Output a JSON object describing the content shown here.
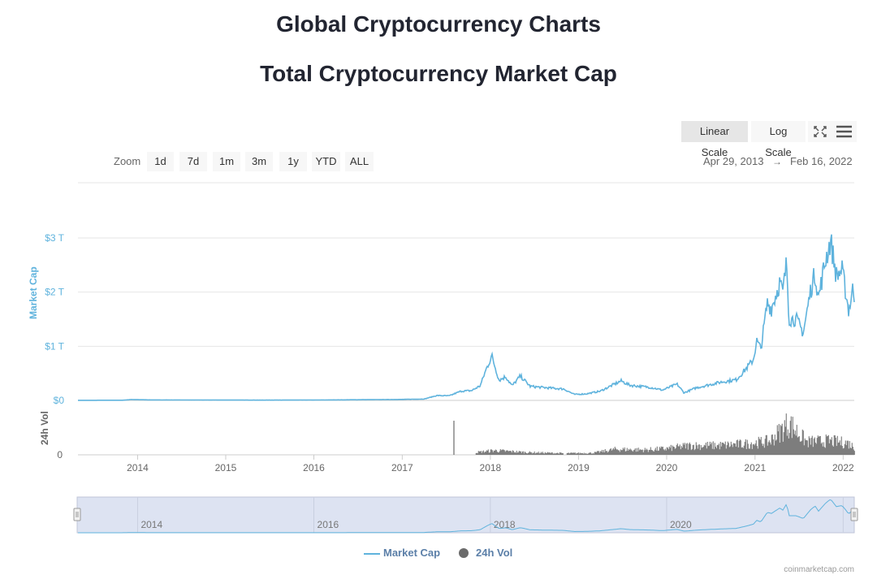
{
  "page": {
    "title": "Global Cryptocurrency Charts"
  },
  "toolbar": {
    "linear_label": "Linear Scale",
    "log_label": "Log Scale",
    "zoom_label": "Zoom",
    "zoom_buttons": [
      "1d",
      "7d",
      "1m",
      "3m",
      "1y",
      "YTD",
      "ALL"
    ],
    "date_from": "Apr 29, 2013",
    "arrow": "→",
    "date_to": "Feb 16, 2022"
  },
  "legend": {
    "market_cap": "Market Cap",
    "vol": "24h Vol"
  },
  "credits": "coinmarketcap.com",
  "colors": {
    "market_cap": "#5fb3dd",
    "volume": "#6b6b6b",
    "navigator_fill": "#dde3f2",
    "axis_text": "#666666"
  },
  "chart_data": {
    "type": "line",
    "title": "Total Cryptocurrency Market Cap",
    "x_range": [
      "2013-04-29",
      "2022-02-16"
    ],
    "x_ticks": [
      "2014",
      "2015",
      "2016",
      "2017",
      "2018",
      "2019",
      "2020",
      "2021",
      "2022"
    ],
    "y_axis": {
      "label": "Market Cap",
      "ticks": [
        "$0",
        "$1 T",
        "$2 T",
        "$3 T"
      ],
      "range_trillion": [
        0,
        3
      ]
    },
    "volume_axis": {
      "label": "24h Vol",
      "ticks": [
        "0"
      ]
    },
    "navigator_ticks": [
      "2014",
      "2016",
      "2018",
      "2020"
    ],
    "grid": true,
    "legend_position": "bottom",
    "series": [
      {
        "name": "Market Cap",
        "unit": "trillion USD",
        "points": [
          [
            "2013-04-29",
            0.0015
          ],
          [
            "2013-11-01",
            0.003
          ],
          [
            "2013-12-05",
            0.015
          ],
          [
            "2014-03-01",
            0.009
          ],
          [
            "2014-09-01",
            0.007
          ],
          [
            "2015-06-01",
            0.005
          ],
          [
            "2016-01-01",
            0.007
          ],
          [
            "2016-07-01",
            0.012
          ],
          [
            "2017-01-01",
            0.018
          ],
          [
            "2017-04-01",
            0.025
          ],
          [
            "2017-05-25",
            0.09
          ],
          [
            "2017-07-15",
            0.085
          ],
          [
            "2017-09-01",
            0.17
          ],
          [
            "2017-10-15",
            0.18
          ],
          [
            "2017-11-20",
            0.27
          ],
          [
            "2017-12-15",
            0.58
          ],
          [
            "2018-01-07",
            0.82
          ],
          [
            "2018-02-06",
            0.37
          ],
          [
            "2018-03-05",
            0.44
          ],
          [
            "2018-04-01",
            0.27
          ],
          [
            "2018-05-05",
            0.45
          ],
          [
            "2018-06-15",
            0.26
          ],
          [
            "2018-08-01",
            0.24
          ],
          [
            "2018-11-01",
            0.21
          ],
          [
            "2018-12-15",
            0.11
          ],
          [
            "2019-02-01",
            0.12
          ],
          [
            "2019-04-01",
            0.17
          ],
          [
            "2019-06-26",
            0.36
          ],
          [
            "2019-08-01",
            0.28
          ],
          [
            "2019-10-26",
            0.24
          ],
          [
            "2019-12-15",
            0.19
          ],
          [
            "2020-02-13",
            0.3
          ],
          [
            "2020-03-13",
            0.14
          ],
          [
            "2020-05-01",
            0.23
          ],
          [
            "2020-08-15",
            0.34
          ],
          [
            "2020-10-15",
            0.38
          ],
          [
            "2020-11-20",
            0.56
          ],
          [
            "2020-12-25",
            0.75
          ],
          [
            "2021-01-08",
            1.1
          ],
          [
            "2021-01-25",
            0.95
          ],
          [
            "2021-02-21",
            1.8
          ],
          [
            "2021-03-10",
            1.7
          ],
          [
            "2021-04-15",
            2.2
          ],
          [
            "2021-04-25",
            1.95
          ],
          [
            "2021-05-12",
            2.55
          ],
          [
            "2021-05-22",
            1.5
          ],
          [
            "2021-06-20",
            1.5
          ],
          [
            "2021-07-20",
            1.25
          ],
          [
            "2021-08-20",
            2.05
          ],
          [
            "2021-09-07",
            2.35
          ],
          [
            "2021-09-21",
            1.9
          ],
          [
            "2021-10-20",
            2.6
          ],
          [
            "2021-11-10",
            2.95
          ],
          [
            "2021-12-04",
            2.3
          ],
          [
            "2021-12-27",
            2.4
          ],
          [
            "2022-01-10",
            2.05
          ],
          [
            "2022-01-24",
            1.65
          ],
          [
            "2022-02-10",
            2.05
          ],
          [
            "2022-02-16",
            1.95
          ]
        ]
      },
      {
        "name": "24h Vol",
        "unit": "relative",
        "points": [
          [
            "2017-08-01",
            1.0
          ],
          [
            "2017-11-01",
            0.08
          ],
          [
            "2018-01-15",
            0.14
          ],
          [
            "2018-06-01",
            0.08
          ],
          [
            "2018-11-01",
            0.05
          ],
          [
            "2019-03-01",
            0.06
          ],
          [
            "2019-06-01",
            0.18
          ],
          [
            "2019-10-01",
            0.16
          ],
          [
            "2020-01-01",
            0.2
          ],
          [
            "2020-04-01",
            0.3
          ],
          [
            "2020-08-01",
            0.3
          ],
          [
            "2020-12-01",
            0.36
          ],
          [
            "2021-03-01",
            0.44
          ],
          [
            "2021-05-19",
            1.03
          ],
          [
            "2021-08-01",
            0.42
          ],
          [
            "2021-11-01",
            0.45
          ],
          [
            "2022-01-20",
            0.38
          ],
          [
            "2022-02-16",
            0.24
          ]
        ]
      }
    ]
  }
}
